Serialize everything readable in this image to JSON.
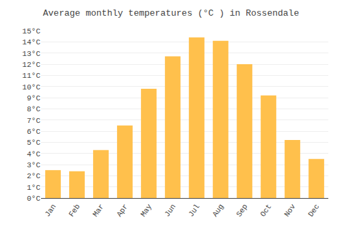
{
  "chart_data": {
    "type": "bar",
    "title": "Average monthly temperatures (°C ) in Rossendale",
    "categories": [
      "Jan",
      "Feb",
      "Mar",
      "Apr",
      "May",
      "Jun",
      "Jul",
      "Aug",
      "Sep",
      "Oct",
      "Nov",
      "Dec"
    ],
    "values": [
      2.5,
      2.4,
      4.3,
      6.5,
      9.8,
      12.7,
      14.4,
      14.1,
      12.0,
      9.2,
      5.2,
      3.5
    ],
    "color": "#FFC04C",
    "ylim": [
      0,
      15
    ],
    "yticks": [
      {
        "value": 0,
        "label": "0°C"
      },
      {
        "value": 1,
        "label": "1°C"
      },
      {
        "value": 2,
        "label": "2°C"
      },
      {
        "value": 3,
        "label": "3°C"
      },
      {
        "value": 4,
        "label": "4°C"
      },
      {
        "value": 5,
        "label": "5°C"
      },
      {
        "value": 6,
        "label": "6°C"
      },
      {
        "value": 7,
        "label": "7°C"
      },
      {
        "value": 8,
        "label": "8°C"
      },
      {
        "value": 9,
        "label": "9°C"
      },
      {
        "value": 10,
        "label": "10°C"
      },
      {
        "value": 11,
        "label": "11°C"
      },
      {
        "value": 12,
        "label": "12°C"
      },
      {
        "value": 13,
        "label": "13°C"
      },
      {
        "value": 14,
        "label": "14°C"
      },
      {
        "value": 15,
        "label": "15°C"
      }
    ],
    "grid": true
  }
}
